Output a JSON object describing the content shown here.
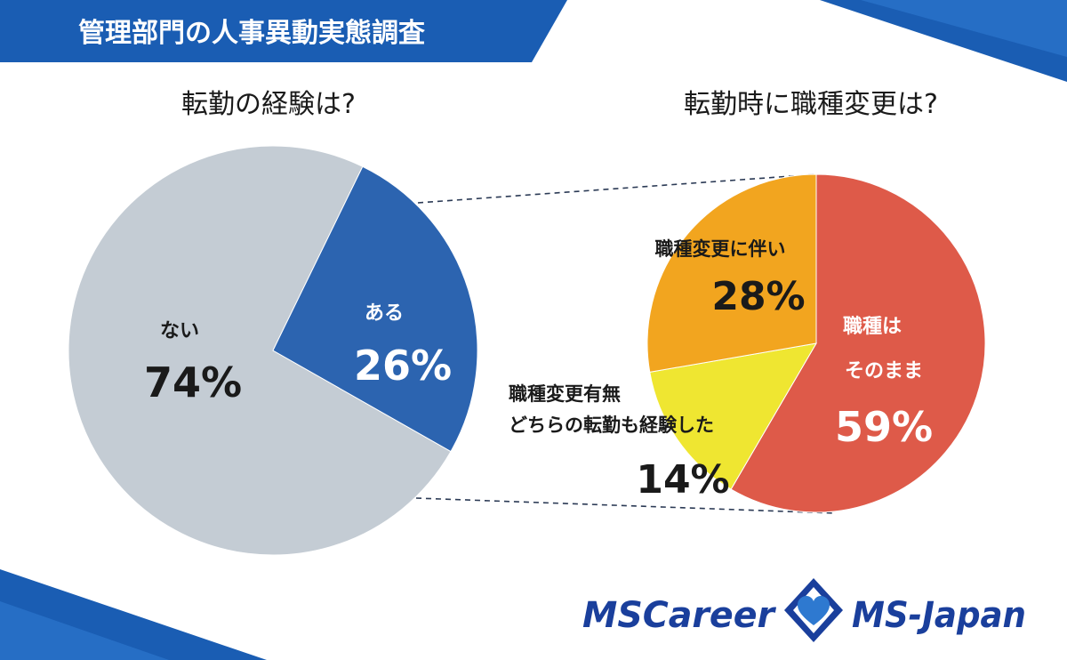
{
  "header": {
    "title": "管理部門の人事異動実態調査"
  },
  "colors": {
    "banner": "#1a5db3",
    "banner_light": "#2e79d0",
    "no": "#c4ccd4",
    "yes": "#2c64b0",
    "keep": "#de5a49",
    "with_change": "#f2a51f",
    "both": "#efe631",
    "text_dark": "#1a1a1a",
    "text_light": "#ffffff",
    "logo_blue": "#1a3f9c"
  },
  "chart_data": [
    {
      "type": "pie",
      "title": "転勤の経験は?",
      "slices": [
        {
          "label": "ない",
          "value": 74,
          "value_label": "74%"
        },
        {
          "label": "ある",
          "value": 26,
          "value_label": "26%"
        }
      ]
    },
    {
      "type": "pie",
      "title": "転勤時に職種変更は?",
      "slices": [
        {
          "label": "職種はそのまま",
          "label_lines": [
            "職種は",
            "そのまま"
          ],
          "value": 59,
          "value_label": "59%"
        },
        {
          "label": "職種変更有無どちらの転勤も経験した",
          "label_lines": [
            "職種変更有無",
            "どちらの転勤も経験した"
          ],
          "value": 14,
          "value_label": "14%"
        },
        {
          "label": "職種変更に伴い",
          "label_lines": [
            "職種変更に伴い"
          ],
          "value": 28,
          "value_label": "28%"
        }
      ]
    }
  ],
  "logos": {
    "left": "MSCareer",
    "right": "MS-Japan",
    "mark_icon": "diamond-heart-logo-icon"
  }
}
